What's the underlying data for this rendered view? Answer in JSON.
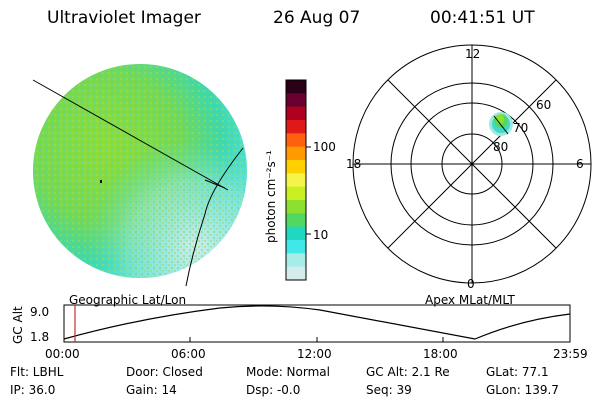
{
  "header": {
    "instrument": "Ultraviolet Imager",
    "date": "26 Aug 07",
    "time": "00:41:51  UT"
  },
  "colorbar": {
    "unit_label": "photon cm⁻²s⁻¹",
    "ticks": [
      "100",
      "10"
    ],
    "colors": [
      "#2a0018",
      "#6a0030",
      "#b00020",
      "#e01818",
      "#ff6010",
      "#ff9a00",
      "#ffd000",
      "#f4f44a",
      "#c8f020",
      "#8ee030",
      "#50d860",
      "#20d8c0",
      "#40e8e8",
      "#a8ece8",
      "#d4ecec"
    ]
  },
  "polar_plot": {
    "mlt_labels": [
      "12",
      "6",
      "0",
      "18"
    ],
    "mlat_labels": [
      "60",
      "70",
      "80"
    ]
  },
  "map_labels": {
    "left": "Geographic Lat/Lon",
    "right": "Apex  MLat/MLT"
  },
  "altitude_panel": {
    "ylabel": "GC Alt",
    "yticks": [
      "9.0",
      "1.8"
    ],
    "xticks": [
      "00:00",
      "06:00",
      "12:00",
      "18:00",
      "23:59"
    ]
  },
  "footer": {
    "flt": "Flt: LBHL",
    "ip": "IP: 36.0",
    "door": "Door: Closed",
    "gain": "Gain: 14",
    "mode": "Mode: Normal",
    "dsp": "Dsp:   -0.0",
    "gcalt": "GC Alt: 2.1 Re",
    "seq": "Seq: 39",
    "glat": "GLat:  77.1",
    "glon": "GLon: 139.7"
  }
}
